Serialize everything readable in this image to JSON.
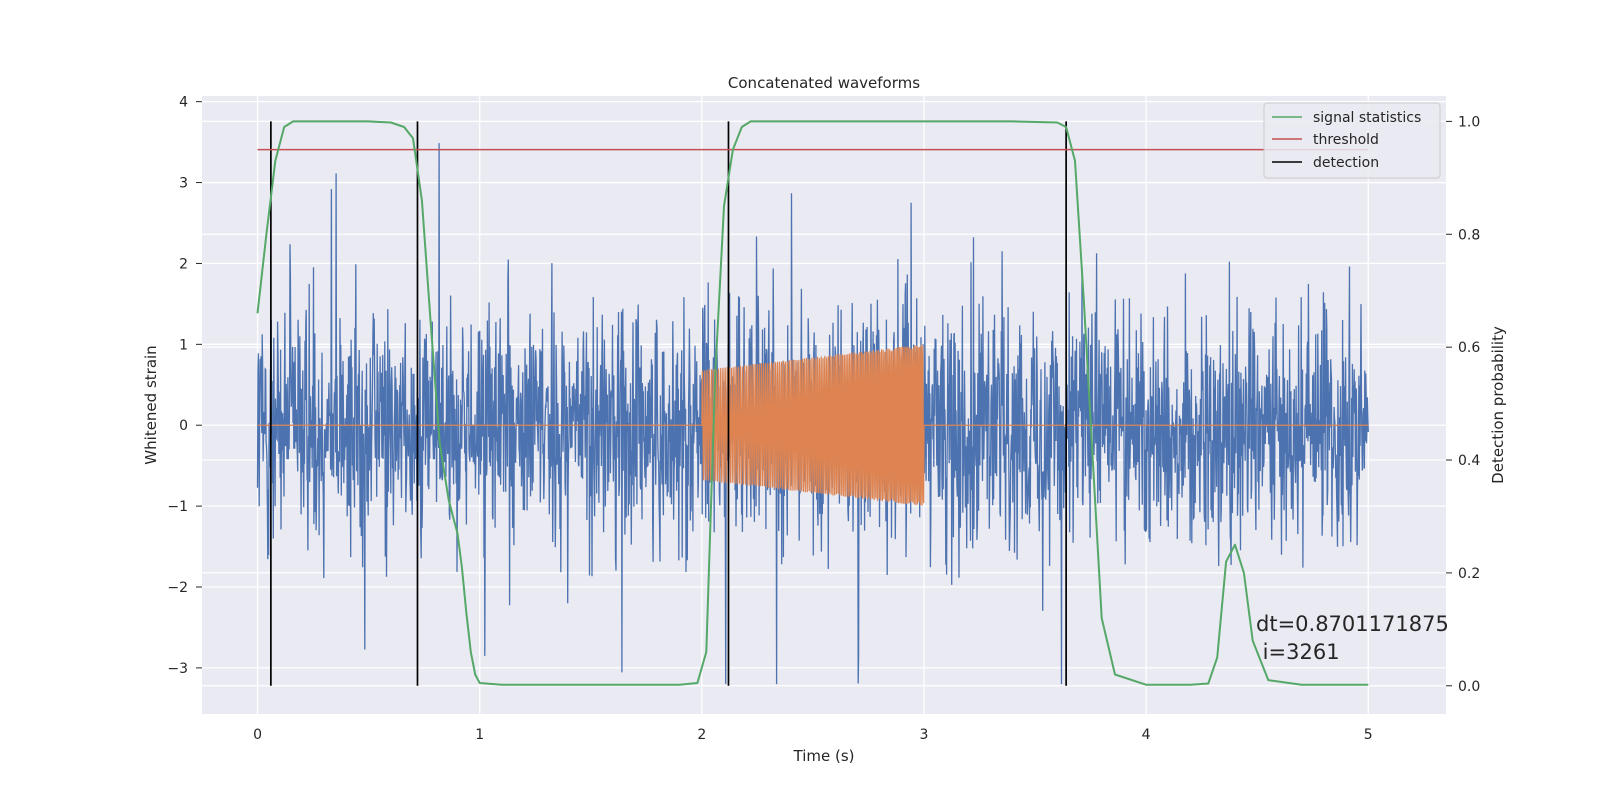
{
  "chart_data": {
    "type": "line",
    "title": "Concatenated waveforms",
    "xlabel": "Time (s)",
    "ylabel": "Whitened strain",
    "y2label": "Detection probability",
    "xlim": [
      -0.25,
      5.35
    ],
    "ylim": [
      -3.57,
      4.07
    ],
    "y2lim": [
      -0.05,
      1.045
    ],
    "xticks": [
      0,
      1,
      2,
      3,
      4,
      5
    ],
    "yticks": [
      -3,
      -2,
      -1,
      0,
      1,
      2,
      3,
      4
    ],
    "y2ticks": [
      0.0,
      0.2,
      0.4,
      0.6,
      0.8,
      1.0
    ],
    "grid": true,
    "legend_position": "top-right",
    "colors": {
      "noise": "#4c72b0",
      "injection": "#dd8452",
      "signal_statistics": "#55a868",
      "threshold": "#c44e52",
      "detection": "#000000",
      "background": "#eaeaf2"
    },
    "series": [
      {
        "name": "",
        "role": "noise",
        "axis": "left",
        "x_range": [
          0,
          5
        ],
        "amplitude_range": [
          -3.2,
          3.75
        ],
        "description_kind": "whitened-noise"
      },
      {
        "name": "",
        "role": "injection",
        "axis": "left",
        "x_range": [
          2,
          3
        ],
        "envelope_start": 0.68,
        "envelope_end": 1.0
      },
      {
        "name": "signal statistics",
        "role": "signal_statistics",
        "axis": "right",
        "x": [
          0.0,
          0.04,
          0.08,
          0.12,
          0.16,
          0.2,
          0.3,
          0.4,
          0.5,
          0.6,
          0.66,
          0.7,
          0.74,
          0.78,
          0.82,
          0.86,
          0.88,
          0.9,
          0.92,
          0.94,
          0.96,
          0.98,
          1.0,
          1.1,
          1.4,
          1.9,
          1.98,
          2.02,
          2.06,
          2.1,
          2.14,
          2.18,
          2.22,
          2.3,
          2.6,
          3.0,
          3.4,
          3.6,
          3.64,
          3.68,
          3.72,
          3.76,
          3.8,
          3.86,
          4.0,
          4.2,
          4.28,
          4.32,
          4.36,
          4.4,
          4.44,
          4.48,
          4.55,
          4.7,
          5.0
        ],
        "y": [
          0.66,
          0.8,
          0.93,
          0.99,
          1.0,
          1.0,
          1.0,
          1.0,
          1.0,
          0.998,
          0.99,
          0.97,
          0.86,
          0.64,
          0.43,
          0.33,
          0.3,
          0.27,
          0.21,
          0.13,
          0.06,
          0.02,
          0.005,
          0.002,
          0.002,
          0.002,
          0.005,
          0.06,
          0.55,
          0.85,
          0.95,
          0.99,
          1.0,
          1.0,
          1.0,
          1.0,
          1.0,
          0.998,
          0.99,
          0.93,
          0.68,
          0.4,
          0.12,
          0.02,
          0.002,
          0.002,
          0.004,
          0.05,
          0.22,
          0.25,
          0.2,
          0.08,
          0.01,
          0.002,
          0.002
        ]
      },
      {
        "name": "threshold",
        "role": "threshold",
        "axis": "right",
        "x": [
          0,
          5
        ],
        "y": [
          0.95,
          0.95
        ]
      },
      {
        "name": "detection",
        "role": "detection",
        "axis": "right",
        "x": [
          0.06,
          0.72,
          2.12,
          3.64
        ],
        "y_range": [
          0.0,
          1.0
        ]
      }
    ],
    "annotation": {
      "text_line1": "dt=0.8701171875",
      "text_line2": " i=3261",
      "x": 4.5,
      "y": -2.9
    }
  }
}
